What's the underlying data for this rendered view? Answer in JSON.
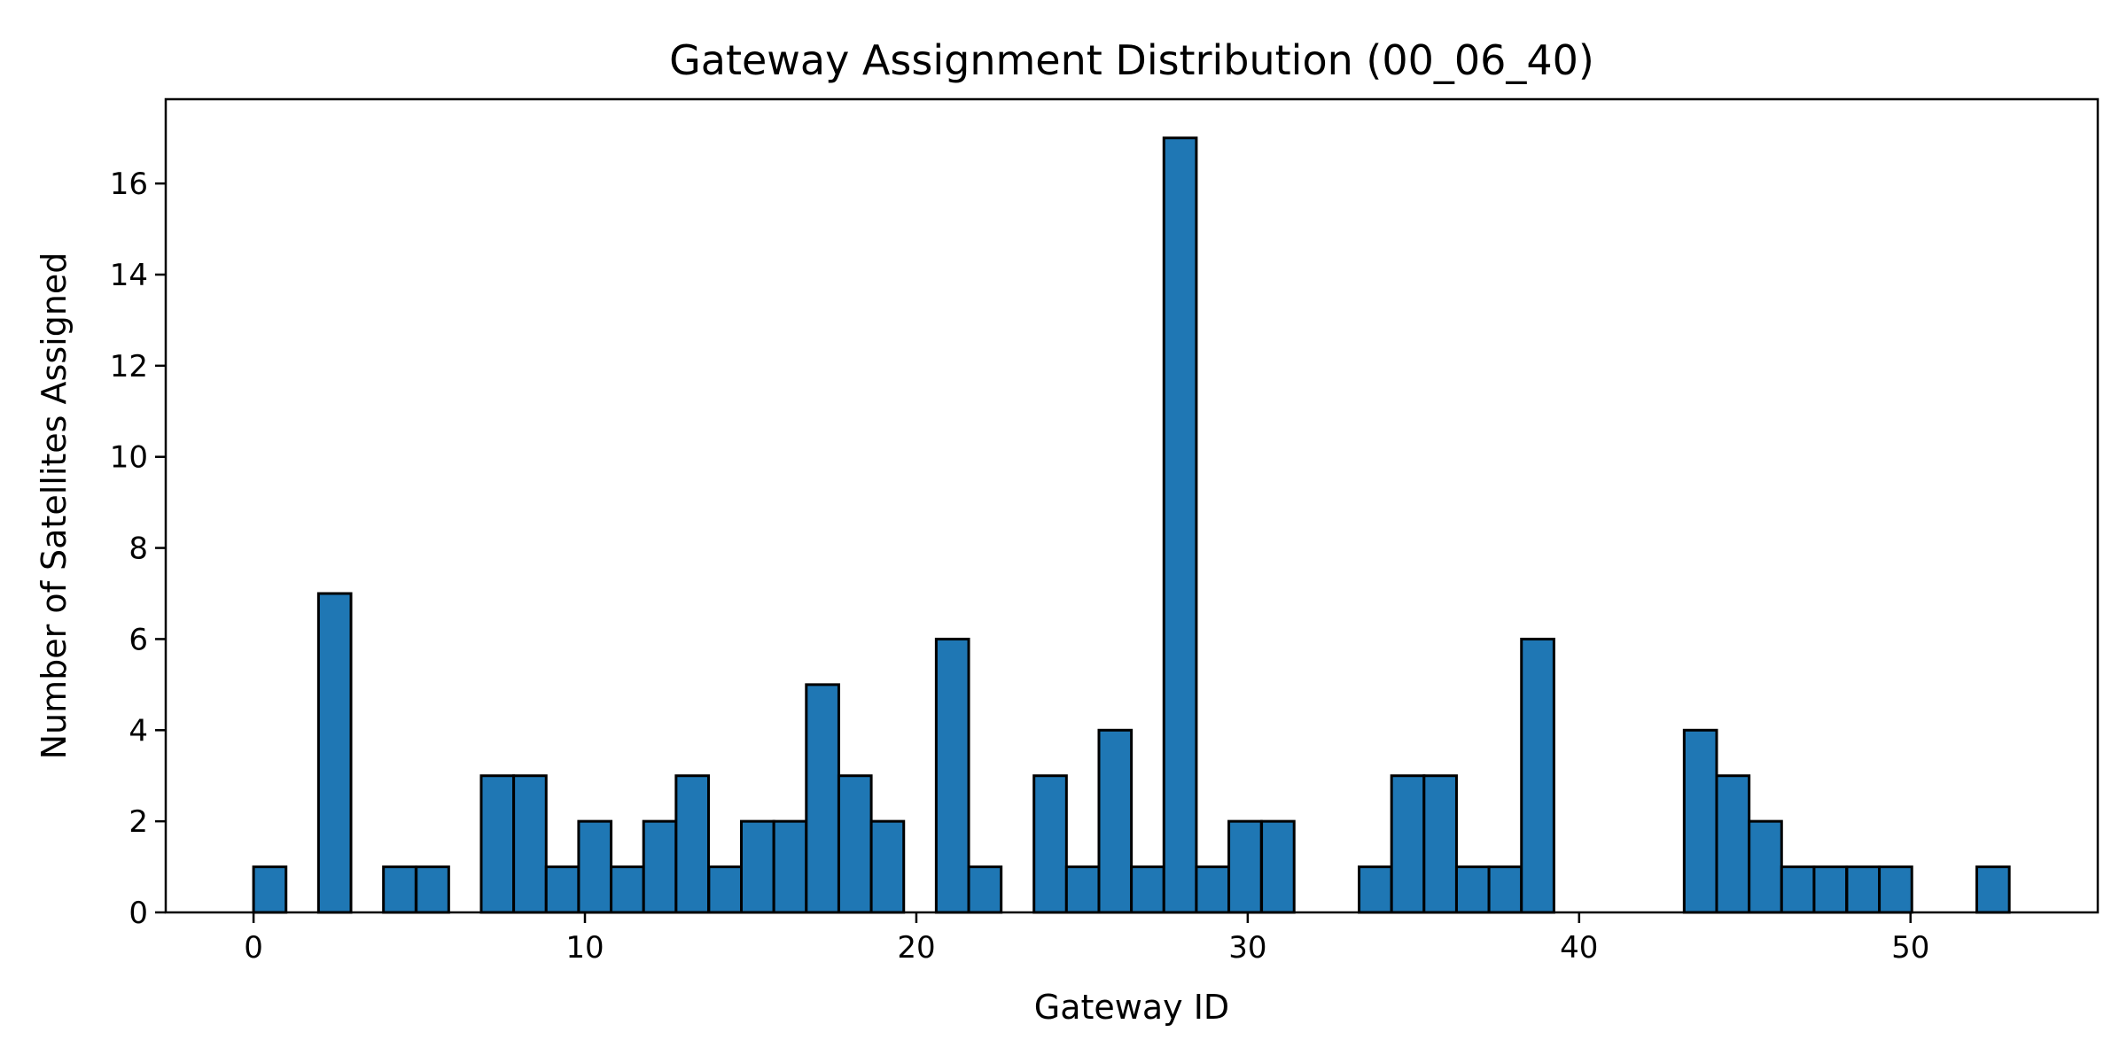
{
  "chart_data": {
    "type": "bar",
    "title": "Gateway Assignment Distribution (00_06_40)",
    "xlabel": "Gateway ID",
    "ylabel": "Number of Satellites Assigned",
    "bar_color": "#1f77b4",
    "edge_color": "#000000",
    "xlim": [
      -2.65,
      55.65
    ],
    "ylim": [
      0,
      17.85
    ],
    "xticks": [
      0,
      10,
      20,
      30,
      40,
      50
    ],
    "yticks": [
      0,
      2,
      4,
      6,
      8,
      10,
      12,
      14,
      16
    ],
    "grid": false,
    "legend": "none",
    "bin_width": 0.98,
    "bin_starts": [
      0,
      0.98,
      1.96,
      2.94,
      3.92,
      4.91,
      5.89,
      6.87,
      7.85,
      8.83,
      9.81,
      10.79,
      11.77,
      12.75,
      13.74,
      14.72,
      15.7,
      16.68,
      17.66,
      18.64,
      19.62,
      20.6,
      21.58,
      22.57,
      23.55,
      24.53,
      25.51,
      26.49,
      27.47,
      28.45,
      29.43,
      30.42,
      31.4,
      32.38,
      33.36,
      34.34,
      35.32,
      36.3,
      37.28,
      38.26,
      39.25,
      40.23,
      41.21,
      42.19,
      43.17,
      44.15,
      45.13,
      46.11,
      47.09,
      48.08,
      49.06,
      50.04,
      51.02,
      52.0
    ],
    "values": [
      1,
      0,
      7,
      0,
      1,
      1,
      0,
      3,
      3,
      1,
      2,
      1,
      2,
      3,
      1,
      2,
      2,
      5,
      3,
      2,
      0,
      6,
      1,
      0,
      3,
      1,
      4,
      1,
      17,
      1,
      2,
      2,
      0,
      0,
      1,
      3,
      3,
      1,
      1,
      6,
      0,
      0,
      0,
      0,
      4,
      3,
      2,
      1,
      1,
      1,
      1,
      0,
      0,
      1
    ]
  }
}
